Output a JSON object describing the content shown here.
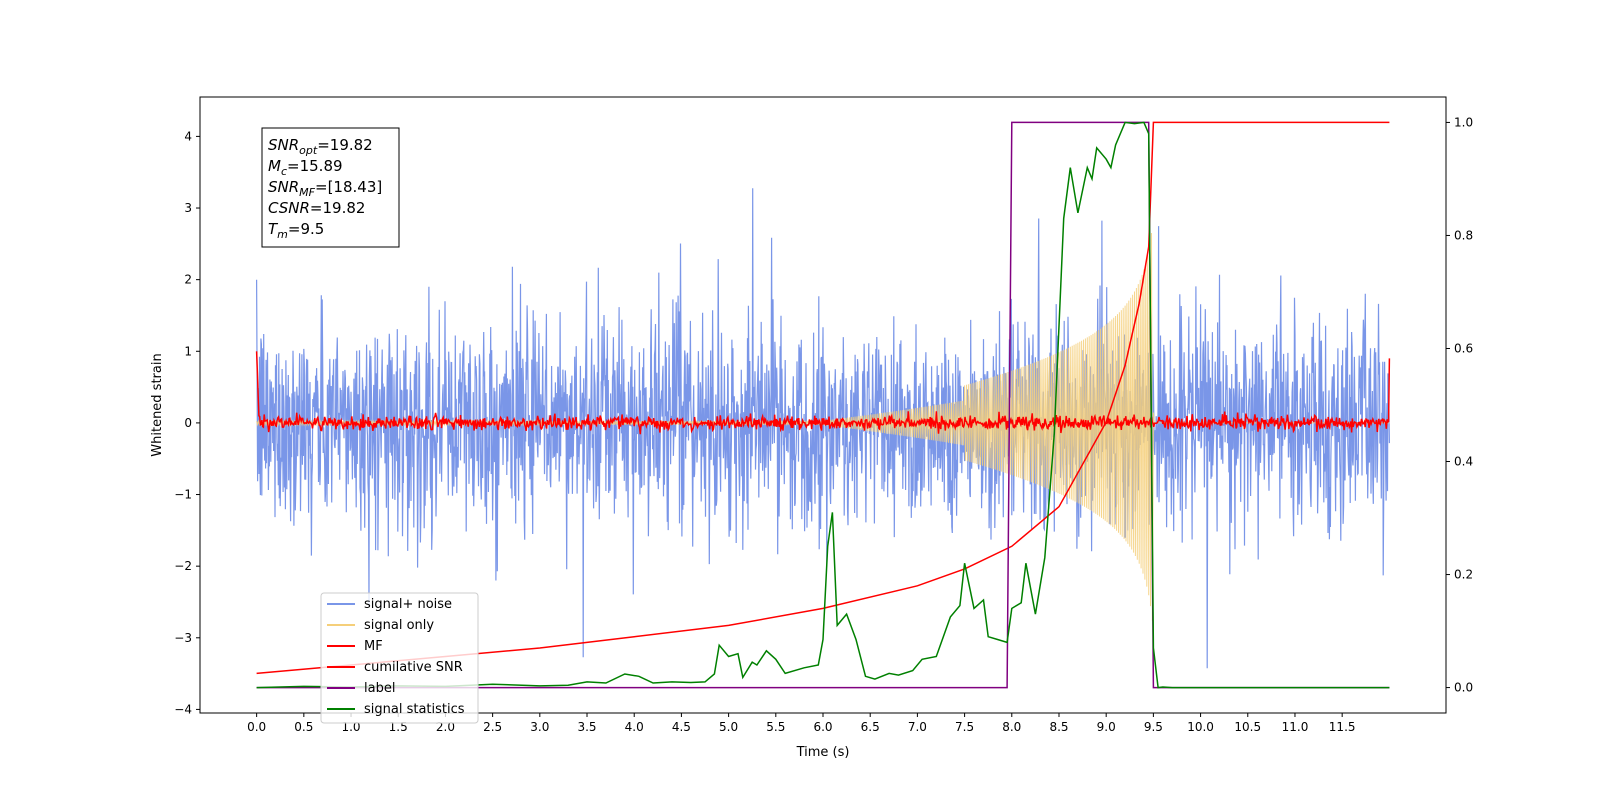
{
  "chart_data": {
    "type": "line",
    "title": "",
    "xlabel": "Time (s)",
    "ylabel": "Whitened strain",
    "xlim": [
      -0.6,
      12.6
    ],
    "ylim": [
      -4.05,
      4.55
    ],
    "y2lim": [
      -0.045,
      1.045
    ],
    "grid": false,
    "legend_placement": "lower-left",
    "xticks": [
      "0.0",
      "0.5",
      "1.0",
      "1.5",
      "2.0",
      "2.5",
      "3.0",
      "3.5",
      "4.0",
      "4.5",
      "5.0",
      "5.5",
      "6.0",
      "6.5",
      "7.0",
      "7.5",
      "8.0",
      "8.5",
      "9.0",
      "9.5",
      "10.0",
      "10.5",
      "11.0",
      "11.5"
    ],
    "yticks": [
      "4",
      "3",
      "2",
      "1",
      "0",
      "−1",
      "−2",
      "−3",
      "−4"
    ],
    "y2ticks": [
      "1.0",
      "0.8",
      "0.6",
      "0.4",
      "0.2",
      "0.0"
    ],
    "annotation": {
      "lines": [
        {
          "sym": "SNR",
          "sub": "opt",
          "value": "=19.82"
        },
        {
          "sym": "M",
          "sub": "c",
          "value": "=15.89"
        },
        {
          "sym": "SNR",
          "sub": "MF",
          "value": "=[18.43]"
        },
        {
          "sym": "CSNR",
          "sub": "",
          "value": "=19.82"
        },
        {
          "sym": "T",
          "sub": "m",
          "value": "=9.5"
        }
      ]
    },
    "series": [
      {
        "name": "signal+ noise",
        "color": "#7a96e8",
        "axis": "left",
        "noise_std": 0.72,
        "range": [
          0,
          12
        ]
      },
      {
        "name": "signal only",
        "color": "#f5cf7a",
        "axis": "left",
        "chirp_amp_at_merger": 2.9,
        "merger_time": 9.5
      },
      {
        "name": "MF",
        "color": "#ff0000",
        "axis": "left",
        "baseline": 0.0,
        "std": 0.05,
        "start_value": 1.0,
        "end_value": 0.9
      },
      {
        "name": "cumilative SNR",
        "color": "#ff0000",
        "axis": "right",
        "x": [
          0,
          1,
          2,
          3,
          4,
          5,
          6,
          7,
          7.5,
          8,
          8.5,
          9,
          9.2,
          9.35,
          9.45,
          9.5,
          12
        ],
        "y": [
          0.025,
          0.04,
          0.055,
          0.07,
          0.09,
          0.11,
          0.14,
          0.18,
          0.21,
          0.25,
          0.32,
          0.47,
          0.57,
          0.68,
          0.78,
          1.0,
          1.0
        ]
      },
      {
        "name": "label",
        "color": "#800080",
        "axis": "right",
        "x": [
          0,
          7.95,
          8.0,
          9.45,
          9.5,
          12
        ],
        "y": [
          0,
          0,
          1,
          1,
          0,
          0
        ]
      },
      {
        "name": "signal statistics",
        "color": "#008000",
        "axis": "right",
        "x": [
          0,
          0.5,
          1,
          1.5,
          2,
          2.5,
          3,
          3.3,
          3.5,
          3.7,
          3.9,
          4.05,
          4.2,
          4.4,
          4.6,
          4.75,
          4.85,
          4.9,
          5.0,
          5.1,
          5.15,
          5.25,
          5.3,
          5.4,
          5.5,
          5.6,
          5.8,
          5.95,
          6.0,
          6.05,
          6.1,
          6.15,
          6.25,
          6.35,
          6.45,
          6.55,
          6.7,
          6.8,
          6.95,
          7.05,
          7.2,
          7.35,
          7.45,
          7.5,
          7.6,
          7.7,
          7.75,
          7.85,
          7.95,
          8.0,
          8.1,
          8.15,
          8.25,
          8.35,
          8.45,
          8.55,
          8.62,
          8.7,
          8.8,
          8.85,
          8.9,
          9.0,
          9.05,
          9.1,
          9.2,
          9.3,
          9.4,
          9.45,
          9.5,
          9.55,
          9.6,
          9.7,
          10,
          10.5,
          11,
          11.5,
          12
        ],
        "y": [
          0,
          0.002,
          0.001,
          0.003,
          0.002,
          0.006,
          0.003,
          0.004,
          0.01,
          0.008,
          0.024,
          0.02,
          0.008,
          0.01,
          0.009,
          0.01,
          0.024,
          0.075,
          0.055,
          0.06,
          0.018,
          0.045,
          0.04,
          0.065,
          0.05,
          0.025,
          0.035,
          0.04,
          0.085,
          0.25,
          0.31,
          0.11,
          0.13,
          0.085,
          0.02,
          0.015,
          0.025,
          0.022,
          0.03,
          0.05,
          0.055,
          0.125,
          0.145,
          0.22,
          0.14,
          0.155,
          0.09,
          0.085,
          0.08,
          0.14,
          0.15,
          0.22,
          0.13,
          0.23,
          0.45,
          0.83,
          0.92,
          0.84,
          0.92,
          0.9,
          0.955,
          0.935,
          0.92,
          0.96,
          1.0,
          0.998,
          1.0,
          0.98,
          0.07,
          0.0,
          0.001,
          0.0,
          0.0,
          0.0,
          0.0,
          0.0,
          0.0
        ]
      }
    ]
  }
}
